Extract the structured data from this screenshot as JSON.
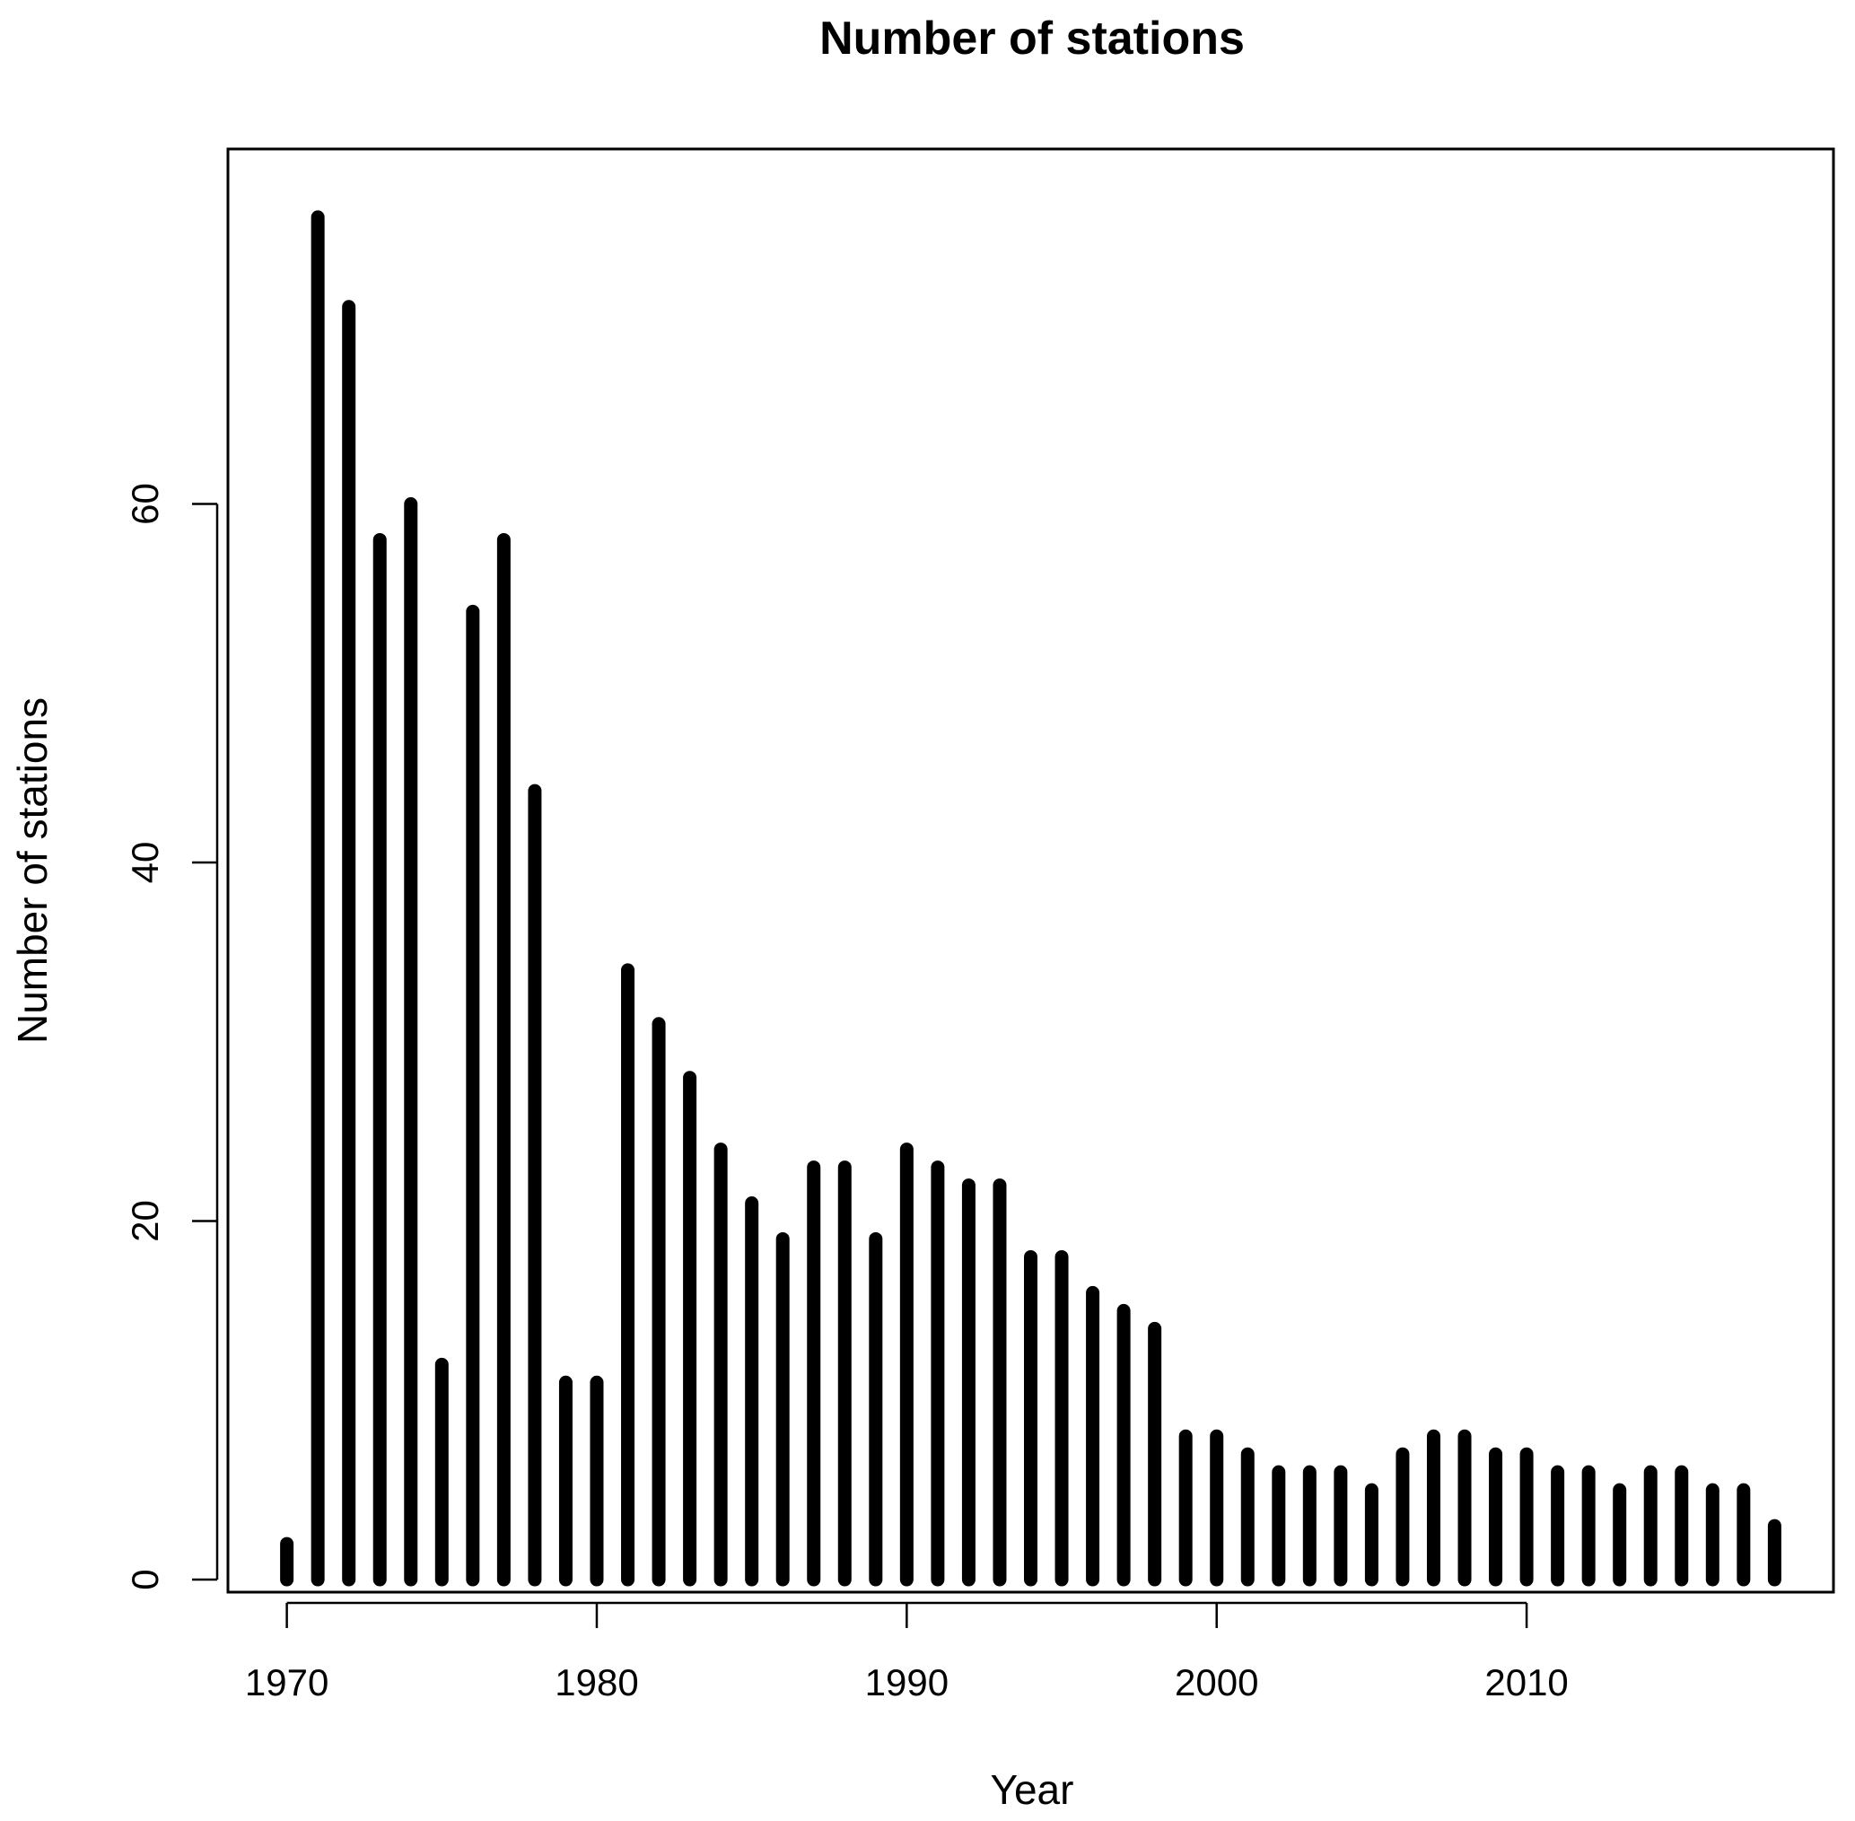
{
  "chart_data": {
    "type": "bar",
    "title": "Number of stations",
    "xlabel": "Year",
    "ylabel": "Number of stations",
    "xlim": [
      1968.1,
      2019.9
    ],
    "ylim": [
      -0.7,
      79.8
    ],
    "x_ticks": [
      1970,
      1980,
      1990,
      2000,
      2010
    ],
    "y_ticks": [
      0,
      20,
      40,
      60
    ],
    "grid": false,
    "legend": "none",
    "bar_color": "#000000",
    "x": [
      1970,
      1971,
      1972,
      1973,
      1974,
      1975,
      1976,
      1977,
      1978,
      1979,
      1980,
      1981,
      1982,
      1983,
      1984,
      1985,
      1986,
      1987,
      1988,
      1989,
      1990,
      1991,
      1992,
      1993,
      1994,
      1995,
      1996,
      1997,
      1998,
      1999,
      2000,
      2001,
      2002,
      2003,
      2004,
      2005,
      2006,
      2007,
      2008,
      2009,
      2010,
      2011,
      2012,
      2013,
      2014,
      2015,
      2016,
      2017,
      2018
    ],
    "values": [
      2,
      76,
      71,
      58,
      60,
      12,
      54,
      58,
      44,
      11,
      11,
      34,
      31,
      28,
      24,
      21,
      19,
      23,
      23,
      19,
      24,
      23,
      22,
      22,
      18,
      18,
      16,
      15,
      14,
      8,
      8,
      7,
      6,
      6,
      6,
      5,
      7,
      8,
      8,
      7,
      7,
      6,
      6,
      5,
      6,
      6,
      5,
      5,
      3
    ]
  }
}
